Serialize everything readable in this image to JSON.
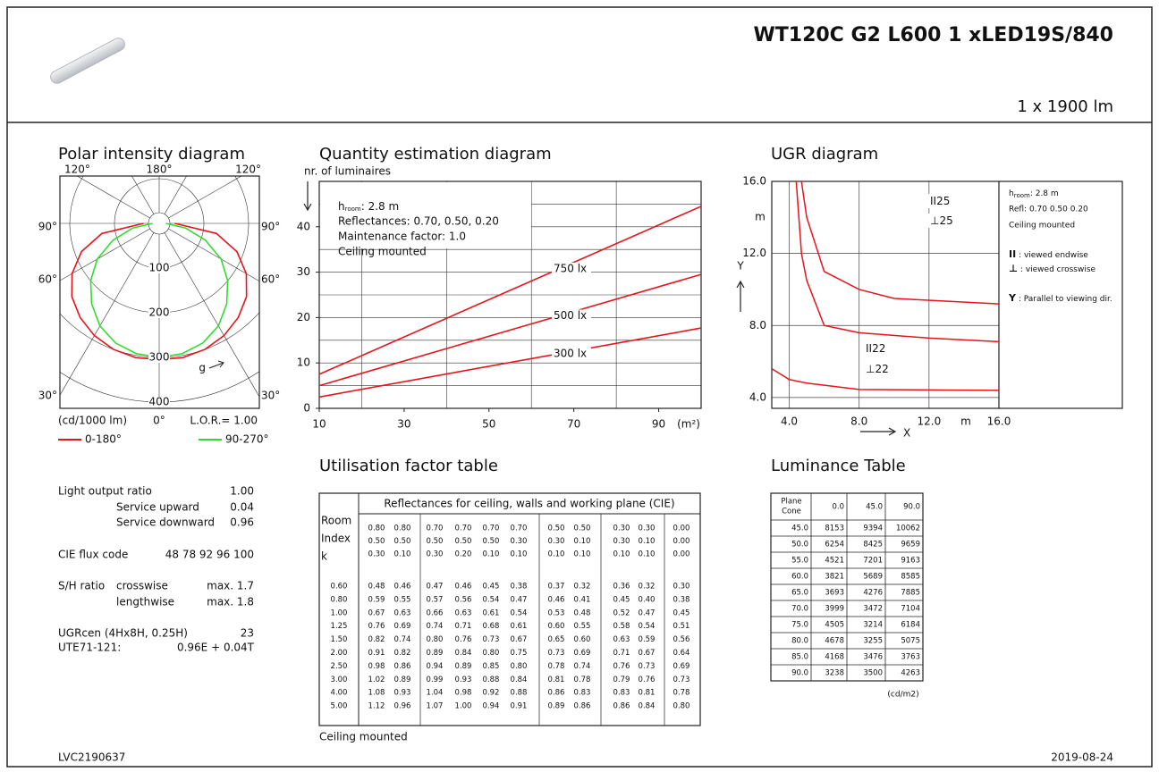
{
  "header": {
    "title": "WT120C G2 L600 1 xLED19S/840",
    "flux": "1 x 1900 lm"
  },
  "polar": {
    "title": "Polar intensity diagram",
    "angle_labels": {
      "top": [
        "120°",
        "180°",
        "120°"
      ],
      "left": [
        "90°",
        "60°",
        "30°"
      ],
      "right": [
        "90°",
        "60°",
        "30°"
      ],
      "bottom": "0°"
    },
    "rlim": [
      0,
      400
    ],
    "rticks": [
      100,
      200,
      300,
      400
    ],
    "unit": "(cd/1000 lm)",
    "lor": "L.O.R.= 1.00",
    "marker": "g",
    "angles": [
      0,
      10,
      20,
      30,
      40,
      50,
      60,
      70,
      80,
      90
    ],
    "series": [
      {
        "name": "0-180°",
        "color": "#e8141b",
        "values": [
          305,
          305,
          300,
          290,
          275,
          255,
          225,
          185,
          130,
          35
        ]
      },
      {
        "name": "90-270°",
        "color": "#2fdc2f",
        "values": [
          300,
          296,
          285,
          265,
          235,
          200,
          160,
          110,
          60,
          15
        ]
      }
    ]
  },
  "quantity": {
    "title": "Quantity estimation diagram",
    "ylabel": "nr. of luminaires",
    "height": {
      "symbol": "h",
      "sub": "room",
      "text": ": 2.8 m"
    },
    "notes": [
      "Reflectances: 0.70, 0.50, 0.20",
      "Maintenance factor: 1.0",
      "Ceiling mounted"
    ],
    "xlim": [
      10,
      100
    ],
    "ylim": [
      0,
      50
    ],
    "xticks": [
      10,
      30,
      50,
      70,
      90
    ],
    "yticks": [
      0,
      10,
      20,
      30,
      40
    ],
    "xgrid": [
      20,
      40,
      60,
      80
    ],
    "ygrid": [
      5,
      10,
      15,
      20,
      25,
      30,
      35,
      40,
      45
    ],
    "xunit": "(m²)",
    "color": "#e8141b",
    "series": [
      {
        "name": "750 lx",
        "x": [
          10,
          100
        ],
        "y": [
          7.5,
          44.5
        ]
      },
      {
        "name": "500 lx",
        "x": [
          10,
          100
        ],
        "y": [
          5,
          29.5
        ]
      },
      {
        "name": "300 lx",
        "x": [
          10,
          100
        ],
        "y": [
          2.5,
          17.7
        ]
      }
    ]
  },
  "ugr": {
    "title": "UGR diagram",
    "unit": "m",
    "xlabel": "X",
    "ylabel": "Y",
    "xlim": [
      3,
      16
    ],
    "ylim": [
      3.4,
      16
    ],
    "xticks": [
      {
        "value": 4,
        "label": "4.0"
      },
      {
        "value": 8,
        "label": "8.0"
      },
      {
        "value": 12,
        "label": "12.0"
      },
      {
        "value": 16,
        "label": "16.0"
      }
    ],
    "yticks": [
      {
        "value": 16,
        "label": "16.0"
      },
      {
        "value": 12,
        "label": "12.0"
      },
      {
        "value": 8,
        "label": "8.0"
      },
      {
        "value": 4,
        "label": "4.0"
      }
    ],
    "color": "#e8141b",
    "curves": [
      {
        "x": [
          4.7,
          5,
          6,
          8,
          10,
          16
        ],
        "y": [
          16,
          14,
          11,
          10,
          9.5,
          9.2
        ]
      },
      {
        "x": [
          4.4,
          4.7,
          5,
          6,
          8,
          12,
          16
        ],
        "y": [
          16,
          12,
          10.5,
          8,
          7.6,
          7.3,
          7.1
        ]
      },
      {
        "x": [
          3,
          4,
          5,
          8,
          16
        ],
        "y": [
          5.6,
          5,
          4.8,
          4.45,
          4.4
        ]
      }
    ],
    "annotations": [
      {
        "symbol": "II",
        "text": "25"
      },
      {
        "symbol": "⊥",
        "text": "25"
      },
      {
        "symbol": "II",
        "text": "22"
      },
      {
        "symbol": "⊥",
        "text": "22"
      }
    ],
    "legend": {
      "height": {
        "symbol": "h",
        "sub": "room",
        "text": ": 2.8 m"
      },
      "refl": "Refl: 0.70 0.50 0.20",
      "mount": "Ceiling mounted",
      "keys": [
        {
          "symbol": "II",
          "text": " : viewed endwise"
        },
        {
          "symbol": "⊥",
          "text": " : viewed crosswise"
        },
        {
          "symbol": "Y",
          "text": "  : Parallel to viewing dir."
        }
      ]
    }
  },
  "stats": [
    {
      "label": "Light output ratio",
      "value": "1.00"
    },
    {
      "sub": "Service upward",
      "value": "0.04"
    },
    {
      "sub": "Service downward",
      "value": "0.96"
    },
    {
      "label": "CIE flux code",
      "value": "48 78 92 96 100"
    },
    {
      "label": "S/H ratio",
      "sub": "crosswise",
      "value": "max. 1.7"
    },
    {
      "sub": "lengthwise",
      "value": "max. 1.8"
    },
    {
      "label": "UGRcen (4Hx8H, 0.25H)",
      "value": "23"
    },
    {
      "label": "UTE71-121:",
      "value": "0.96E + 0.04T"
    }
  ],
  "utilisation": {
    "title": "Utilisation factor table",
    "header": "Reflectances for ceiling, walls and working plane (CIE)",
    "index_label": [
      "Room",
      "Index",
      "k"
    ],
    "reflectances": [
      [
        "0.80",
        "0.80",
        "0.70",
        "0.70",
        "0.70",
        "0.70",
        "0.50",
        "0.50",
        "0.30",
        "0.30",
        "0.00"
      ],
      [
        "0.50",
        "0.50",
        "0.50",
        "0.50",
        "0.50",
        "0.30",
        "0.30",
        "0.10",
        "0.30",
        "0.10",
        "0.00"
      ],
      [
        "0.30",
        "0.10",
        "0.30",
        "0.20",
        "0.10",
        "0.10",
        "0.10",
        "0.10",
        "0.10",
        "0.10",
        "0.00"
      ]
    ],
    "rows": [
      {
        "k": "0.60",
        "values": [
          "0.48",
          "0.46",
          "0.47",
          "0.46",
          "0.45",
          "0.38",
          "0.37",
          "0.32",
          "0.36",
          "0.32",
          "0.30"
        ]
      },
      {
        "k": "0.80",
        "values": [
          "0.59",
          "0.55",
          "0.57",
          "0.56",
          "0.54",
          "0.47",
          "0.46",
          "0.41",
          "0.45",
          "0.40",
          "0.38"
        ]
      },
      {
        "k": "1.00",
        "values": [
          "0.67",
          "0.63",
          "0.66",
          "0.63",
          "0.61",
          "0.54",
          "0.53",
          "0.48",
          "0.52",
          "0.47",
          "0.45"
        ]
      },
      {
        "k": "1.25",
        "values": [
          "0.76",
          "0.69",
          "0.74",
          "0.71",
          "0.68",
          "0.61",
          "0.60",
          "0.55",
          "0.58",
          "0.54",
          "0.51"
        ]
      },
      {
        "k": "1.50",
        "values": [
          "0.82",
          "0.74",
          "0.80",
          "0.76",
          "0.73",
          "0.67",
          "0.65",
          "0.60",
          "0.63",
          "0.59",
          "0.56"
        ]
      },
      {
        "k": "2.00",
        "values": [
          "0.91",
          "0.82",
          "0.89",
          "0.84",
          "0.80",
          "0.75",
          "0.73",
          "0.69",
          "0.71",
          "0.67",
          "0.64"
        ]
      },
      {
        "k": "2.50",
        "values": [
          "0.98",
          "0.86",
          "0.94",
          "0.89",
          "0.85",
          "0.80",
          "0.78",
          "0.74",
          "0.76",
          "0.73",
          "0.69"
        ]
      },
      {
        "k": "3.00",
        "values": [
          "1.02",
          "0.89",
          "0.99",
          "0.93",
          "0.88",
          "0.84",
          "0.81",
          "0.78",
          "0.79",
          "0.76",
          "0.73"
        ]
      },
      {
        "k": "4.00",
        "values": [
          "1.08",
          "0.93",
          "1.04",
          "0.98",
          "0.92",
          "0.88",
          "0.86",
          "0.83",
          "0.83",
          "0.81",
          "0.78"
        ]
      },
      {
        "k": "5.00",
        "values": [
          "1.12",
          "0.96",
          "1.07",
          "1.00",
          "0.94",
          "0.91",
          "0.89",
          "0.86",
          "0.86",
          "0.84",
          "0.80"
        ]
      }
    ],
    "note": "Ceiling mounted"
  },
  "luminance": {
    "title": "Luminance Table",
    "corner": [
      "Plane",
      "Cone"
    ],
    "columns": [
      "0.0",
      "45.0",
      "90.0"
    ],
    "rows": [
      [
        "45.0",
        "8153",
        "9394",
        "10062"
      ],
      [
        "50.0",
        "6254",
        "8425",
        "9659"
      ],
      [
        "55.0",
        "4521",
        "7201",
        "9163"
      ],
      [
        "60.0",
        "3821",
        "5689",
        "8585"
      ],
      [
        "65.0",
        "3693",
        "4276",
        "7885"
      ],
      [
        "70.0",
        "3999",
        "3472",
        "7104"
      ],
      [
        "75.0",
        "4505",
        "3214",
        "6184"
      ],
      [
        "80.0",
        "4678",
        "3255",
        "5075"
      ],
      [
        "85.0",
        "4168",
        "3476",
        "3763"
      ],
      [
        "90.0",
        "3238",
        "3500",
        "4263"
      ]
    ],
    "unit": "(cd/m2)"
  },
  "footer": {
    "code": "LVC2190637",
    "date": "2019-08-24"
  }
}
